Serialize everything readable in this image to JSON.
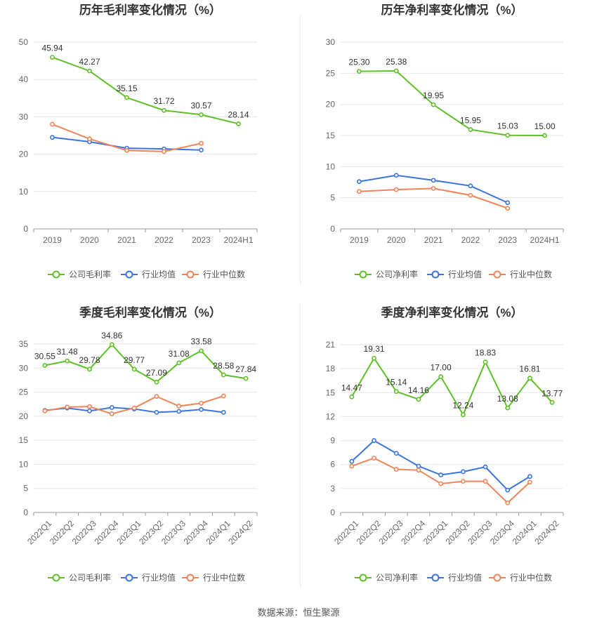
{
  "source_note": "数据来源：恒生聚源",
  "colors": {
    "company": "#5ec026",
    "avg": "#3a74e0",
    "median": "#f08458",
    "grid": "#e6e6e6",
    "axis": "#999999",
    "text": "#333333",
    "tick": "#666666"
  },
  "chart_data": [
    {
      "id": "annual-gross",
      "type": "line",
      "title": "历年毛利率变化情况（%）",
      "x": [
        "2019",
        "2020",
        "2021",
        "2022",
        "2023",
        "2024H1"
      ],
      "ylim": [
        0,
        50
      ],
      "yticks": [
        0,
        10,
        20,
        30,
        40,
        50
      ],
      "grid": true,
      "legend_position": "bottom",
      "series": [
        {
          "name": "公司毛利率",
          "role": "company",
          "labels": true,
          "values": [
            45.94,
            42.27,
            35.15,
            31.72,
            30.57,
            28.14
          ],
          "value_labels": [
            "45.94",
            "42.27",
            "35.15",
            "31.72",
            "30.57",
            "28.14"
          ]
        },
        {
          "name": "行业均值",
          "role": "avg",
          "labels": false,
          "values": [
            24.5,
            23.3,
            21.6,
            21.4,
            21.1,
            null
          ]
        },
        {
          "name": "行业中位数",
          "role": "median",
          "labels": false,
          "values": [
            28.0,
            24.1,
            21.0,
            20.7,
            22.9,
            null
          ]
        }
      ]
    },
    {
      "id": "annual-net",
      "type": "line",
      "title": "历年净利率变化情况（%）",
      "x": [
        "2019",
        "2020",
        "2021",
        "2022",
        "2023",
        "2024H1"
      ],
      "ylim": [
        0,
        30
      ],
      "yticks": [
        0,
        5,
        10,
        15,
        20,
        25,
        30
      ],
      "grid": true,
      "legend_position": "bottom",
      "series": [
        {
          "name": "公司净利率",
          "role": "company",
          "labels": true,
          "values": [
            25.3,
            25.38,
            19.95,
            15.95,
            15.03,
            15.0
          ],
          "value_labels": [
            "25.30",
            "25.38",
            "19.95",
            "15.95",
            "15.03",
            "15.00"
          ]
        },
        {
          "name": "行业均值",
          "role": "avg",
          "labels": false,
          "values": [
            7.6,
            8.6,
            7.8,
            6.9,
            4.2,
            null
          ]
        },
        {
          "name": "行业中位数",
          "role": "median",
          "labels": false,
          "values": [
            6.0,
            6.3,
            6.5,
            5.4,
            3.3,
            null
          ]
        }
      ]
    },
    {
      "id": "quarterly-gross",
      "type": "line",
      "title": "季度毛利率变化情况（%）",
      "x": [
        "2022Q1",
        "2022Q2",
        "2022Q3",
        "2022Q4",
        "2023Q1",
        "2023Q2",
        "2023Q3",
        "2023Q4",
        "2024Q1",
        "2024Q2"
      ],
      "ylim": [
        0,
        35
      ],
      "yticks": [
        0,
        5,
        10,
        15,
        20,
        25,
        30,
        35
      ],
      "grid": true,
      "legend_position": "bottom",
      "series": [
        {
          "name": "公司毛利率",
          "role": "company",
          "labels": true,
          "values": [
            30.55,
            31.48,
            29.78,
            34.86,
            29.77,
            27.09,
            31.08,
            33.58,
            28.58,
            27.84
          ],
          "value_labels": [
            "30.55",
            "31.48",
            "29.78",
            "34.86",
            "29.77",
            "27.09",
            "31.08",
            "33.58",
            "28.58",
            "27.84"
          ]
        },
        {
          "name": "行业均值",
          "role": "avg",
          "labels": false,
          "values": [
            21.2,
            21.7,
            21.1,
            21.8,
            21.5,
            20.8,
            21.0,
            21.4,
            20.8,
            null
          ]
        },
        {
          "name": "行业中位数",
          "role": "median",
          "labels": false,
          "values": [
            21.1,
            21.9,
            22.0,
            20.5,
            21.7,
            24.1,
            22.1,
            22.7,
            24.2,
            null
          ]
        }
      ]
    },
    {
      "id": "quarterly-net",
      "type": "line",
      "title": "季度净利率变化情况（%）",
      "x": [
        "2022Q1",
        "2022Q2",
        "2022Q3",
        "2022Q4",
        "2023Q1",
        "2023Q2",
        "2023Q3",
        "2023Q4",
        "2024Q1",
        "2024Q2"
      ],
      "ylim": [
        0,
        21
      ],
      "yticks": [
        0,
        3,
        6,
        9,
        12,
        15,
        18,
        21
      ],
      "grid": true,
      "legend_position": "bottom",
      "series": [
        {
          "name": "公司净利率",
          "role": "company",
          "labels": true,
          "values": [
            14.47,
            19.31,
            15.14,
            14.16,
            17.0,
            12.24,
            18.83,
            13.08,
            16.81,
            13.77
          ],
          "value_labels": [
            "14.47",
            "19.31",
            "15.14",
            "14.16",
            "17.00",
            "12.24",
            "18.83",
            "13.08",
            "16.81",
            "13.77"
          ]
        },
        {
          "name": "行业均值",
          "role": "avg",
          "labels": false,
          "values": [
            6.4,
            9.0,
            7.4,
            5.8,
            4.7,
            5.1,
            5.7,
            2.8,
            4.5,
            null
          ]
        },
        {
          "name": "行业中位数",
          "role": "median",
          "labels": false,
          "values": [
            5.8,
            6.8,
            5.4,
            5.3,
            3.6,
            3.9,
            3.9,
            1.2,
            3.8,
            null
          ]
        }
      ]
    }
  ]
}
